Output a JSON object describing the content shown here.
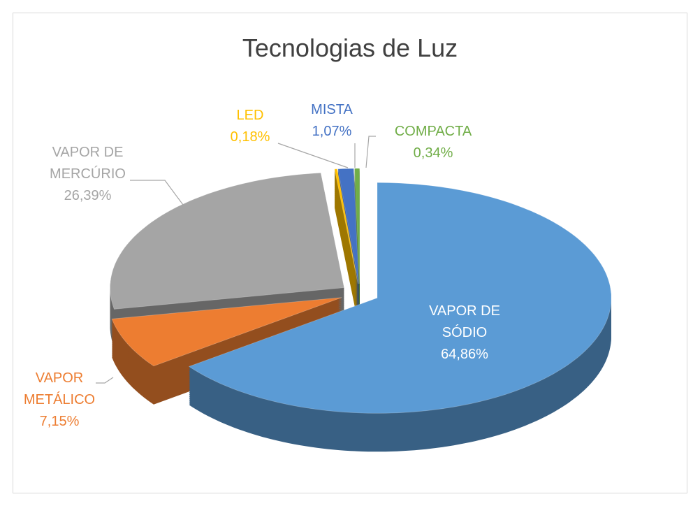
{
  "chart_data": {
    "type": "pie",
    "title": "Tecnologias de Luz",
    "categories": [
      "VAPOR DE SÓDIO",
      "VAPOR METÁLICO",
      "VAPOR DE MERCÚRIO",
      "LED",
      "MISTA",
      "COMPACTA"
    ],
    "values": [
      64.86,
      7.15,
      26.39,
      0.18,
      1.07,
      0.34
    ],
    "value_labels": [
      "64,86%",
      "7,15%",
      "26,39%",
      "0,18%",
      "1,07%",
      "0,34%"
    ],
    "colors": [
      "#5b9bd5",
      "#ed7d31",
      "#a5a5a5",
      "#ffc000",
      "#4472c4",
      "#70ad47"
    ]
  }
}
